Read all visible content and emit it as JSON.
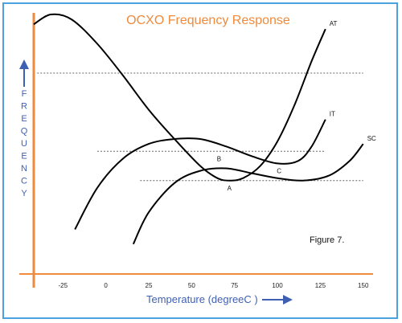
{
  "chart_data": {
    "type": "line",
    "title": "OCXO Frequency Response",
    "xlabel": "Temperature (degreeC )",
    "ylabel": "FREQUENCY",
    "x_ticks": [
      -25,
      0,
      25,
      50,
      75,
      100,
      125,
      150
    ],
    "xlim": [
      -42,
      152
    ],
    "ylim": [
      0,
      100
    ],
    "annotation": "Figure 7.",
    "colors": {
      "axes": "#f08a3c",
      "labels": "#3f5fb3",
      "title": "#f08a3c",
      "frame": "#4aa3df",
      "curves": "#000000"
    },
    "series": [
      {
        "name": "AT",
        "x": [
          -42,
          -32,
          -20,
          -5,
          10,
          25,
          40,
          55,
          65,
          72,
          80,
          90,
          100,
          110,
          120,
          128
        ],
        "y": [
          96,
          100,
          98,
          88,
          75,
          61,
          49,
          38,
          33,
          32,
          33,
          38,
          48,
          63,
          81,
          94
        ]
      },
      {
        "name": "IT",
        "x": [
          -18,
          -5,
          10,
          25,
          40,
          55,
          70,
          85,
          100,
          112,
          120,
          128
        ],
        "y": [
          12,
          29,
          41,
          47,
          49,
          49,
          46,
          42,
          39,
          40,
          46,
          57
        ]
      },
      {
        "name": "SC",
        "x": [
          16,
          25,
          40,
          55,
          70,
          85,
          100,
          115,
          130,
          142,
          150
        ],
        "y": [
          6,
          19,
          31,
          36,
          37,
          35,
          33,
          32,
          34,
          40,
          47
        ]
      }
    ],
    "reference_lines": [
      {
        "x_start": -40,
        "x_end": 150,
        "y": 76
      },
      {
        "x_start": -5,
        "x_end": 128,
        "y": 44
      },
      {
        "x_start": 20,
        "x_end": 150,
        "y": 32
      }
    ],
    "point_labels": [
      {
        "text": "A",
        "x": 72,
        "y": 28
      },
      {
        "text": "C",
        "x": 101,
        "y": 35
      },
      {
        "text": "B",
        "x": 66,
        "y": 40
      }
    ]
  }
}
